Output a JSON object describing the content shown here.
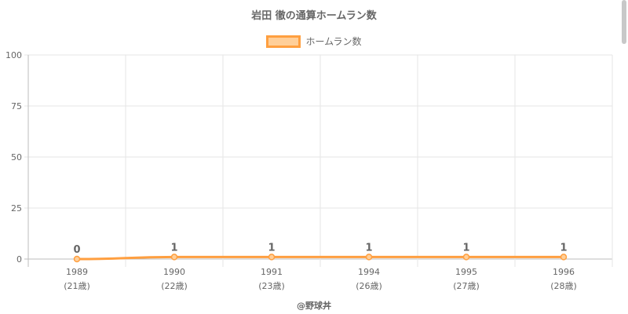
{
  "chart_data": {
    "type": "line",
    "title": "岩田 徹の通算ホームラン数",
    "categories": [
      "1989",
      "1990",
      "1991",
      "1994",
      "1995",
      "1996"
    ],
    "category_sublabels": [
      "(21歳)",
      "(22歳)",
      "(23歳)",
      "(26歳)",
      "(27歳)",
      "(28歳)"
    ],
    "series": [
      {
        "name": "ホームラン数",
        "values": [
          0,
          1,
          1,
          1,
          1,
          1
        ],
        "data_labels": [
          "0",
          "1",
          "1",
          "1",
          "1",
          "1"
        ]
      }
    ],
    "ylim": [
      0,
      100
    ],
    "yticks": [
      "0",
      "25",
      "50",
      "75",
      "100"
    ],
    "xlabel": "",
    "ylabel": "",
    "grid": true,
    "legend_position": "top",
    "colors": {
      "line": "#ff9f40",
      "fill": "#ffcf99",
      "grid": "#e5e5e5",
      "text": "#666666"
    }
  },
  "footer": {
    "credit": "@野球丼"
  }
}
